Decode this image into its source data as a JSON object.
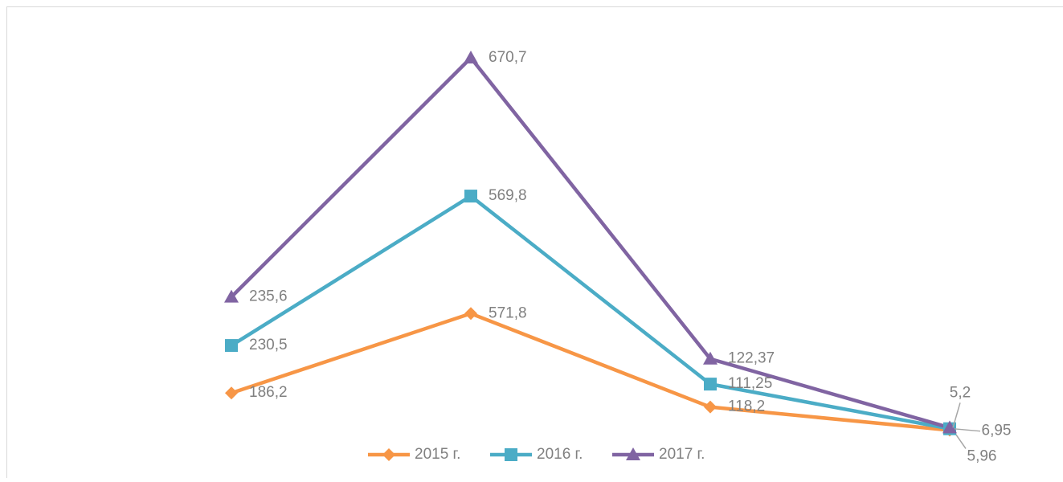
{
  "chart_data": {
    "type": "line",
    "stacked": true,
    "categories": [
      null,
      null,
      null,
      null
    ],
    "series": [
      {
        "name": "2015 г.",
        "color": "#f79646",
        "values": [
          186.2,
          571.8,
          118.2,
          5.96
        ],
        "value_labels": [
          "186,2",
          "571,8",
          "118,2",
          "5,96"
        ]
      },
      {
        "name": "2016 г.",
        "color": "#4bacc6",
        "values": [
          230.5,
          569.8,
          111.25,
          6.95
        ],
        "value_labels": [
          "230,5",
          "569,8",
          "111,25",
          "6,95"
        ]
      },
      {
        "name": "2017 г.",
        "color": "#8064a2",
        "values": [
          235.6,
          670.7,
          122.37,
          5.2
        ],
        "value_labels": [
          "235,6",
          "670,7",
          "122,37",
          "5,2"
        ]
      }
    ],
    "legend": "bottom"
  }
}
